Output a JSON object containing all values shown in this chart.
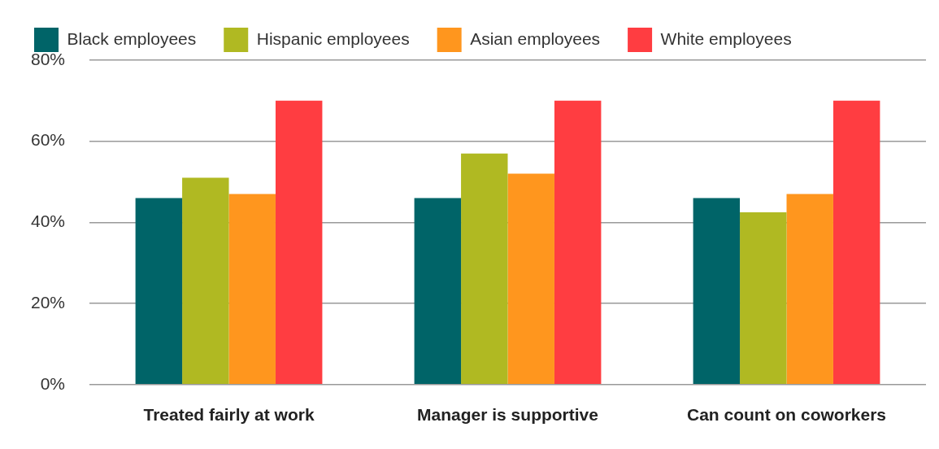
{
  "chart_data": {
    "type": "bar",
    "categories": [
      "Treated fairly at work",
      "Manager is supportive",
      "Can count on coworkers"
    ],
    "series": [
      {
        "name": "Black employees",
        "color": "#006468",
        "values": [
          46,
          46,
          46
        ]
      },
      {
        "name": "Hispanic employees",
        "color": "#b0b922",
        "values": [
          51,
          57,
          42.5
        ]
      },
      {
        "name": "Asian employees",
        "color": "#ff961e",
        "values": [
          47,
          52,
          47
        ]
      },
      {
        "name": "White employees",
        "color": "#ff3d41",
        "values": [
          70,
          70,
          70
        ]
      }
    ],
    "ylim": [
      0,
      80
    ],
    "yticks": [
      {
        "value": 0,
        "label": "0%"
      },
      {
        "value": 20,
        "label": "20%"
      },
      {
        "value": 40,
        "label": "40%"
      },
      {
        "value": 60,
        "label": "60%"
      },
      {
        "value": 80,
        "label": "80%"
      }
    ],
    "grid": "y",
    "legend": "top left"
  }
}
